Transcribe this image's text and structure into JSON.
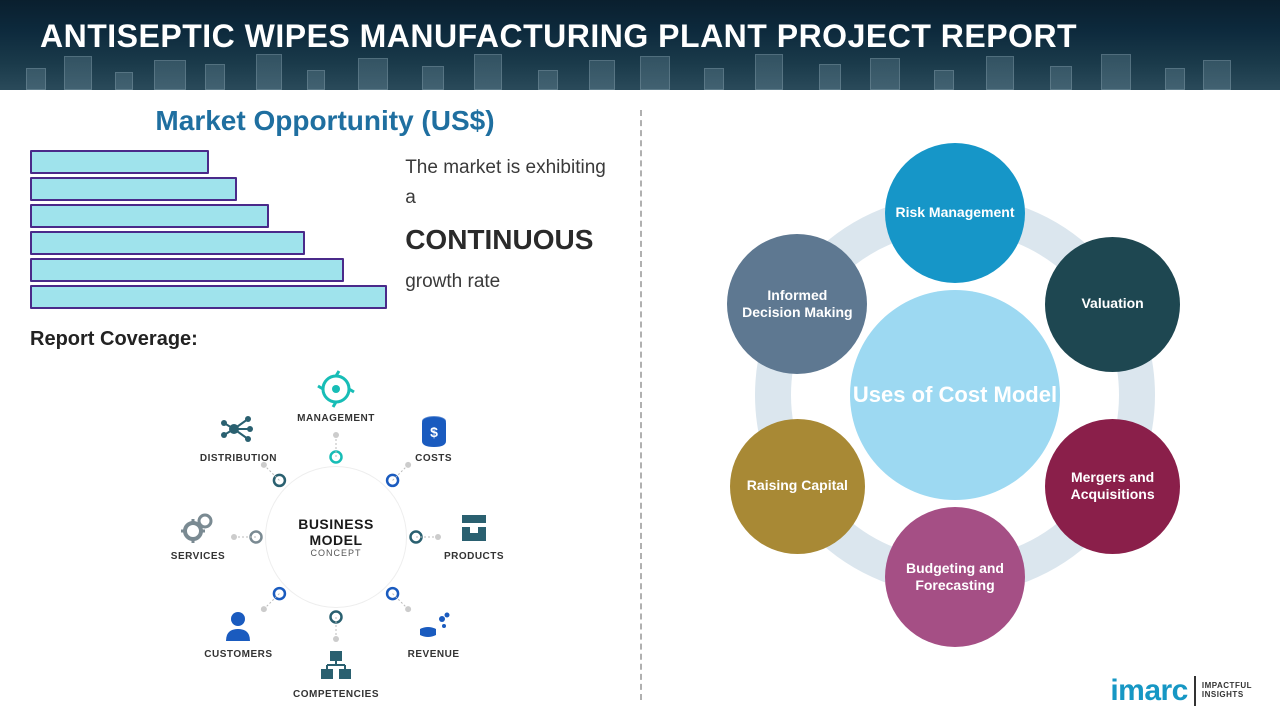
{
  "header": {
    "title": "ANTISEPTIC WIPES MANUFACTURING PLANT PROJECT REPORT"
  },
  "market": {
    "title": "Market Opportunity (US$)",
    "growth_line1": "The market is exhibiting a",
    "growth_big": "CONTINUOUS",
    "growth_line3": "growth rate",
    "chart": {
      "type": "bar",
      "orientation": "horizontal",
      "bars": [
        {
          "width_pct": 50,
          "fill": "#9fe3ec",
          "border": "#4a2a8a"
        },
        {
          "width_pct": 58,
          "fill": "#9fe3ec",
          "border": "#4a2a8a"
        },
        {
          "width_pct": 67,
          "fill": "#9fe3ec",
          "border": "#4a2a8a"
        },
        {
          "width_pct": 77,
          "fill": "#9fe3ec",
          "border": "#4a2a8a"
        },
        {
          "width_pct": 88,
          "fill": "#9fe3ec",
          "border": "#4a2a8a"
        },
        {
          "width_pct": 100,
          "fill": "#9fe3ec",
          "border": "#4a2a8a"
        }
      ]
    }
  },
  "coverage": {
    "label": "Report Coverage:",
    "center_line1": "BUSINESS",
    "center_line2": "MODEL",
    "center_line3": "CONCEPT",
    "ring_colors": [
      "#17c1c7",
      "#1a5bbf",
      "#0c2f66",
      "#17c1c7",
      "#1a5bbf",
      "#0c2f66",
      "#17c1c7",
      "#1a5bbf"
    ],
    "items": [
      {
        "label": "MANAGEMENT",
        "color": "#17bdb6",
        "icon": "management"
      },
      {
        "label": "COSTS",
        "color": "#1a5bbf",
        "icon": "costs"
      },
      {
        "label": "PRODUCTS",
        "color": "#2a6070",
        "icon": "products"
      },
      {
        "label": "REVENUE",
        "color": "#1a5bbf",
        "icon": "revenue"
      },
      {
        "label": "COMPETENCIES",
        "color": "#2a6070",
        "icon": "competencies"
      },
      {
        "label": "CUSTOMERS",
        "color": "#1a5bbf",
        "icon": "customers"
      },
      {
        "label": "SERVICES",
        "color": "#7a8a92",
        "icon": "services"
      },
      {
        "label": "DISTRIBUTION",
        "color": "#2a6070",
        "icon": "distribution"
      }
    ]
  },
  "cost_model": {
    "center_label": "Uses of Cost Model",
    "center_color": "#9dd9f2",
    "track_color": "#dbe6ee",
    "nodes": [
      {
        "label": "Risk Management",
        "color": "#1696c8",
        "diameter": 140
      },
      {
        "label": "Valuation",
        "color": "#1e4751",
        "diameter": 135
      },
      {
        "label": "Mergers and Acquisitions",
        "color": "#8a1f4a",
        "diameter": 135
      },
      {
        "label": "Budgeting and Forecasting",
        "color": "#a54f85",
        "diameter": 140
      },
      {
        "label": "Raising Capital",
        "color": "#a88935",
        "diameter": 135
      },
      {
        "label": "Informed Decision Making",
        "color": "#5e7891",
        "diameter": 140
      }
    ]
  },
  "brand": {
    "name": "imarc",
    "tagline1": "IMPACTFUL",
    "tagline2": "INSIGHTS",
    "name_color": "#1697c4"
  }
}
